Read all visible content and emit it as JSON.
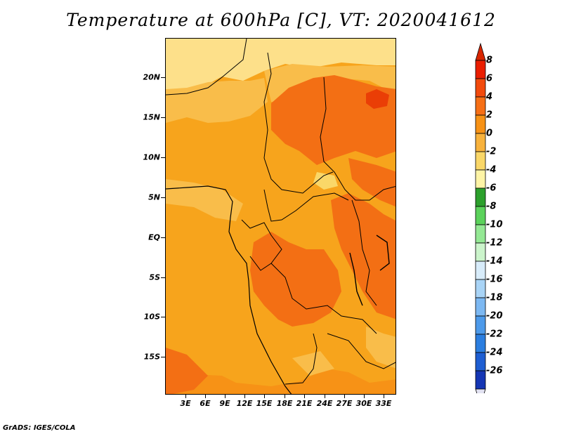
{
  "title": "Temperature at 600hPa [C], VT: 2020041612",
  "footer": "GrADS: IGES/COLA",
  "map": {
    "region": "Central Africa",
    "lat_labels": [
      "20N",
      "15N",
      "10N",
      "5N",
      "EQ",
      "5S",
      "10S",
      "15S"
    ],
    "lon_labels": [
      "3E",
      "6E",
      "9E",
      "12E",
      "15E",
      "18E",
      "21E",
      "24E",
      "27E",
      "30E",
      "33E"
    ]
  },
  "colorbar": {
    "labels": [
      "8",
      "6",
      "4",
      "2",
      "0",
      "-2",
      "-4",
      "-6",
      "-8",
      "-10",
      "-12",
      "-14",
      "-16",
      "-18",
      "-20",
      "-22",
      "-24",
      "-26"
    ],
    "colors": [
      "#ea1e00",
      "#f24a0c",
      "#f66f16",
      "#f79216",
      "#f8b23c",
      "#fad768",
      "#fef4a6",
      "#2ca02c",
      "#5bd25b",
      "#94e894",
      "#cbf4cb",
      "#d8ecfa",
      "#a9d4f6",
      "#7cb8f2",
      "#4d9aea",
      "#2b7ee0",
      "#1e5ed2",
      "#1536b4",
      "#0c1670"
    ],
    "over_color": "#d82600",
    "under_color": "#e2e2f2"
  }
}
